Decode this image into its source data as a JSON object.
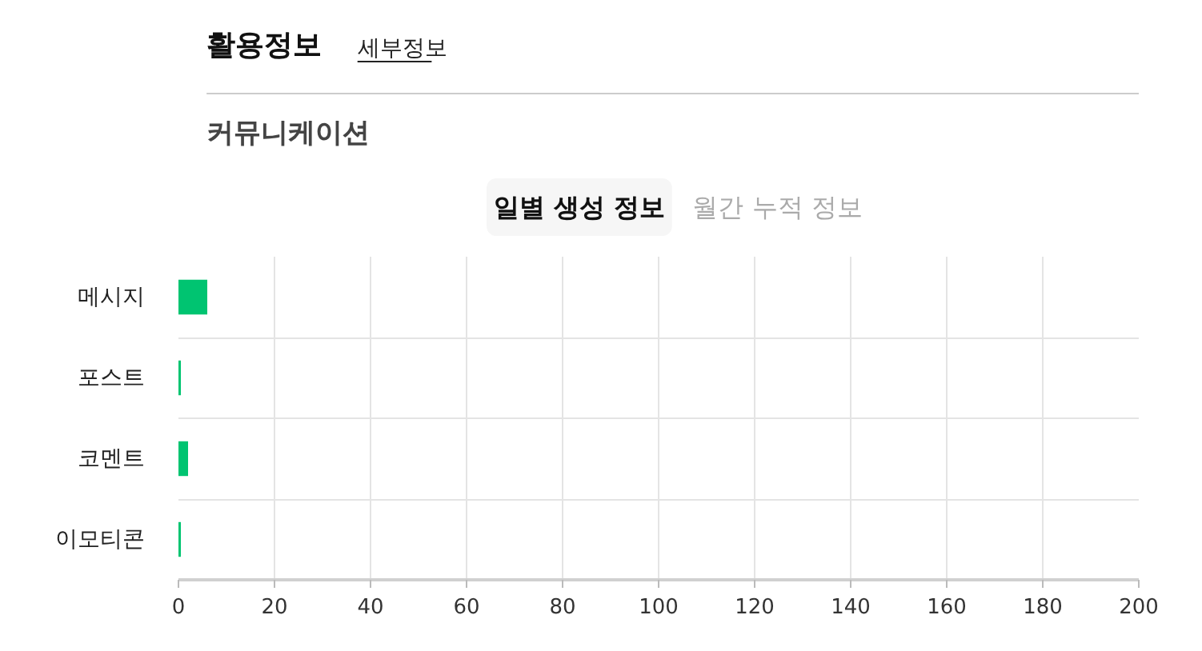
{
  "chart_data": {
    "type": "bar",
    "orientation": "horizontal",
    "title": "활용정보",
    "subtitle": "커뮤니케이션",
    "annotations": [
      "세부정보",
      "일별 생성 정보",
      "월간 누적 정보"
    ],
    "categories": [
      "메시지",
      "포스트",
      "코멘트",
      "이모티콘"
    ],
    "values": [
      6,
      0.5,
      2,
      0.5
    ],
    "color": "#00c471",
    "xlim": [
      0,
      200
    ],
    "xticks": [
      0,
      20,
      40,
      60,
      80,
      100,
      120,
      140,
      160,
      180,
      200
    ],
    "grid": true
  }
}
